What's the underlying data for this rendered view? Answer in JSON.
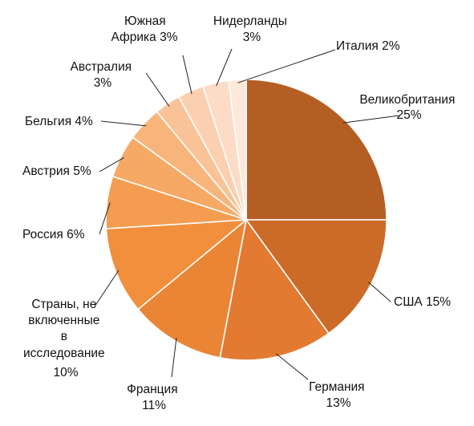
{
  "chart_data": {
    "type": "pie",
    "start": "12 o'clock",
    "direction": "clockwise",
    "slices": [
      {
        "label": "Великобритания",
        "pct": "25%",
        "value": 25,
        "color": "#b55e24"
      },
      {
        "label": "США",
        "pct": "15%",
        "value": 15,
        "color": "#cc6a28"
      },
      {
        "label": "Германия",
        "pct": "13%",
        "value": 13,
        "color": "#e27a31"
      },
      {
        "label": "Франция",
        "pct": "11%",
        "value": 11,
        "color": "#ea8536"
      },
      {
        "label": "Страны, не включенные в исследование",
        "pct": "10%",
        "value": 10,
        "color": "#f18f3c"
      },
      {
        "label": "Россия",
        "pct": "6%",
        "value": 6,
        "color": "#f49d50"
      },
      {
        "label": "Австрия",
        "pct": "5%",
        "value": 5,
        "color": "#f6a965"
      },
      {
        "label": "Бельгия",
        "pct": "4%",
        "value": 4,
        "color": "#f7b57c"
      },
      {
        "label": "Австралия",
        "pct": "3%",
        "value": 3,
        "color": "#f9c297"
      },
      {
        "label": "Южная Африка",
        "pct": "3%",
        "value": 3,
        "color": "#fbd0b1"
      },
      {
        "label": "Нидерланды",
        "pct": "3%",
        "value": 3,
        "color": "#fcdcc7"
      },
      {
        "label": "Италия",
        "pct": "2%",
        "value": 2,
        "color": "#fde8da"
      }
    ],
    "label_lines": [
      [
        "Великобритания",
        "25%"
      ],
      [
        "США 15%"
      ],
      [
        "Германия",
        "13%"
      ],
      [
        "Франция",
        "11%"
      ],
      [
        "Страны, не",
        "включенные",
        "в",
        "исследование",
        "10%"
      ],
      [
        "Россия 6%"
      ],
      [
        "Австрия 5%"
      ],
      [
        "Бельгия 4%"
      ],
      [
        "Австралия",
        "3%"
      ],
      [
        "Южная",
        "Африка 3%"
      ],
      [
        "Нидерланды",
        "3%"
      ],
      [
        "Италия 2%"
      ]
    ]
  }
}
